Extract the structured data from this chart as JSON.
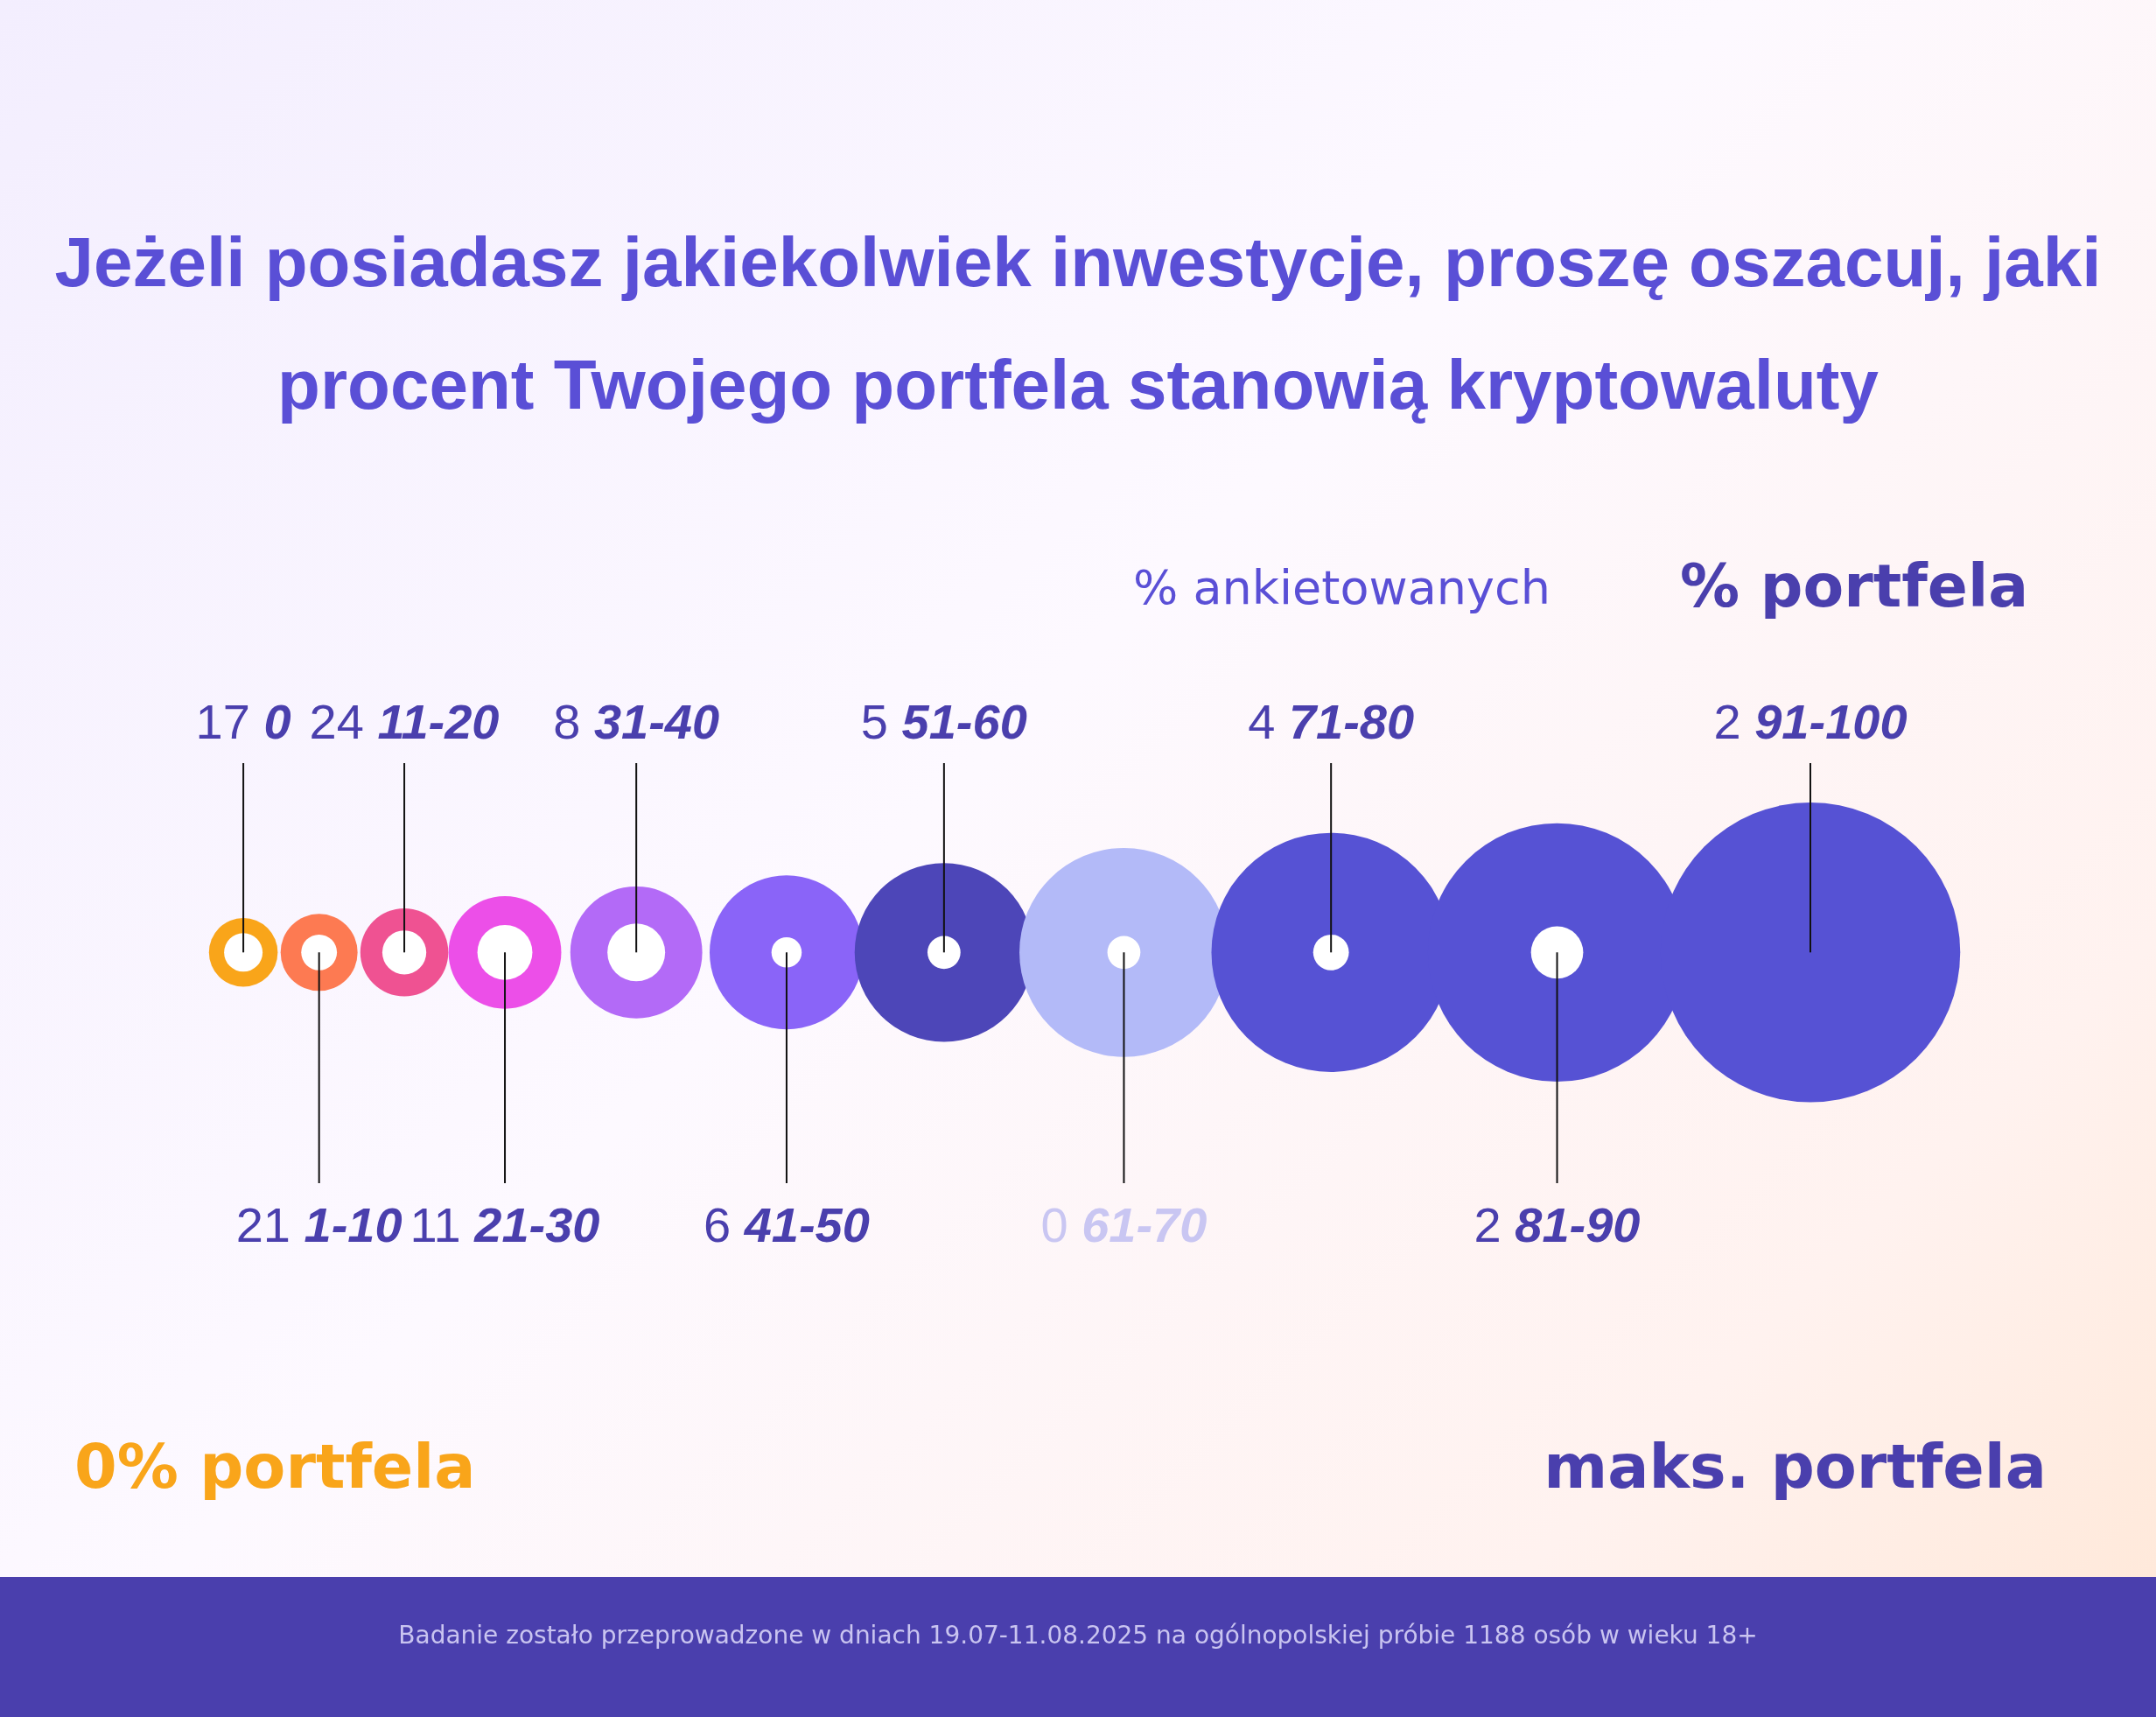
{
  "chart_data": {
    "type": "other",
    "title": "Jeżeli posiadasz jakiekolwiek inwestycje, proszę oszacuj, jaki procent Twojego portfela stanowią kryptowaluty",
    "categories": [
      "0",
      "1-10",
      "11-20",
      "21-30",
      "31-40",
      "41-50",
      "51-60",
      "61-70",
      "71-80",
      "81-90",
      "91-100"
    ],
    "values": [
      17,
      21,
      24,
      11,
      8,
      6,
      5,
      0,
      4,
      2,
      2
    ],
    "data_labels": true,
    "colors": [
      "#f9a51a",
      "#fd7a52",
      "#ef5292",
      "#ec4fe8",
      "#b36af7",
      "#8a64f8",
      "#4d46b8",
      "#b3baf8",
      "#5652d4",
      "#5652d4",
      "#5652d4"
    ],
    "annotations": [
      "% ankietowanych",
      "% portfela",
      "0% portfela",
      "maks. portfela",
      "Badanie zostało przeprowadzone w dniach 19.07-11.08.2025 na ogólnopolskiej próbie 1188 osób w wieku 18+"
    ]
  }
}
